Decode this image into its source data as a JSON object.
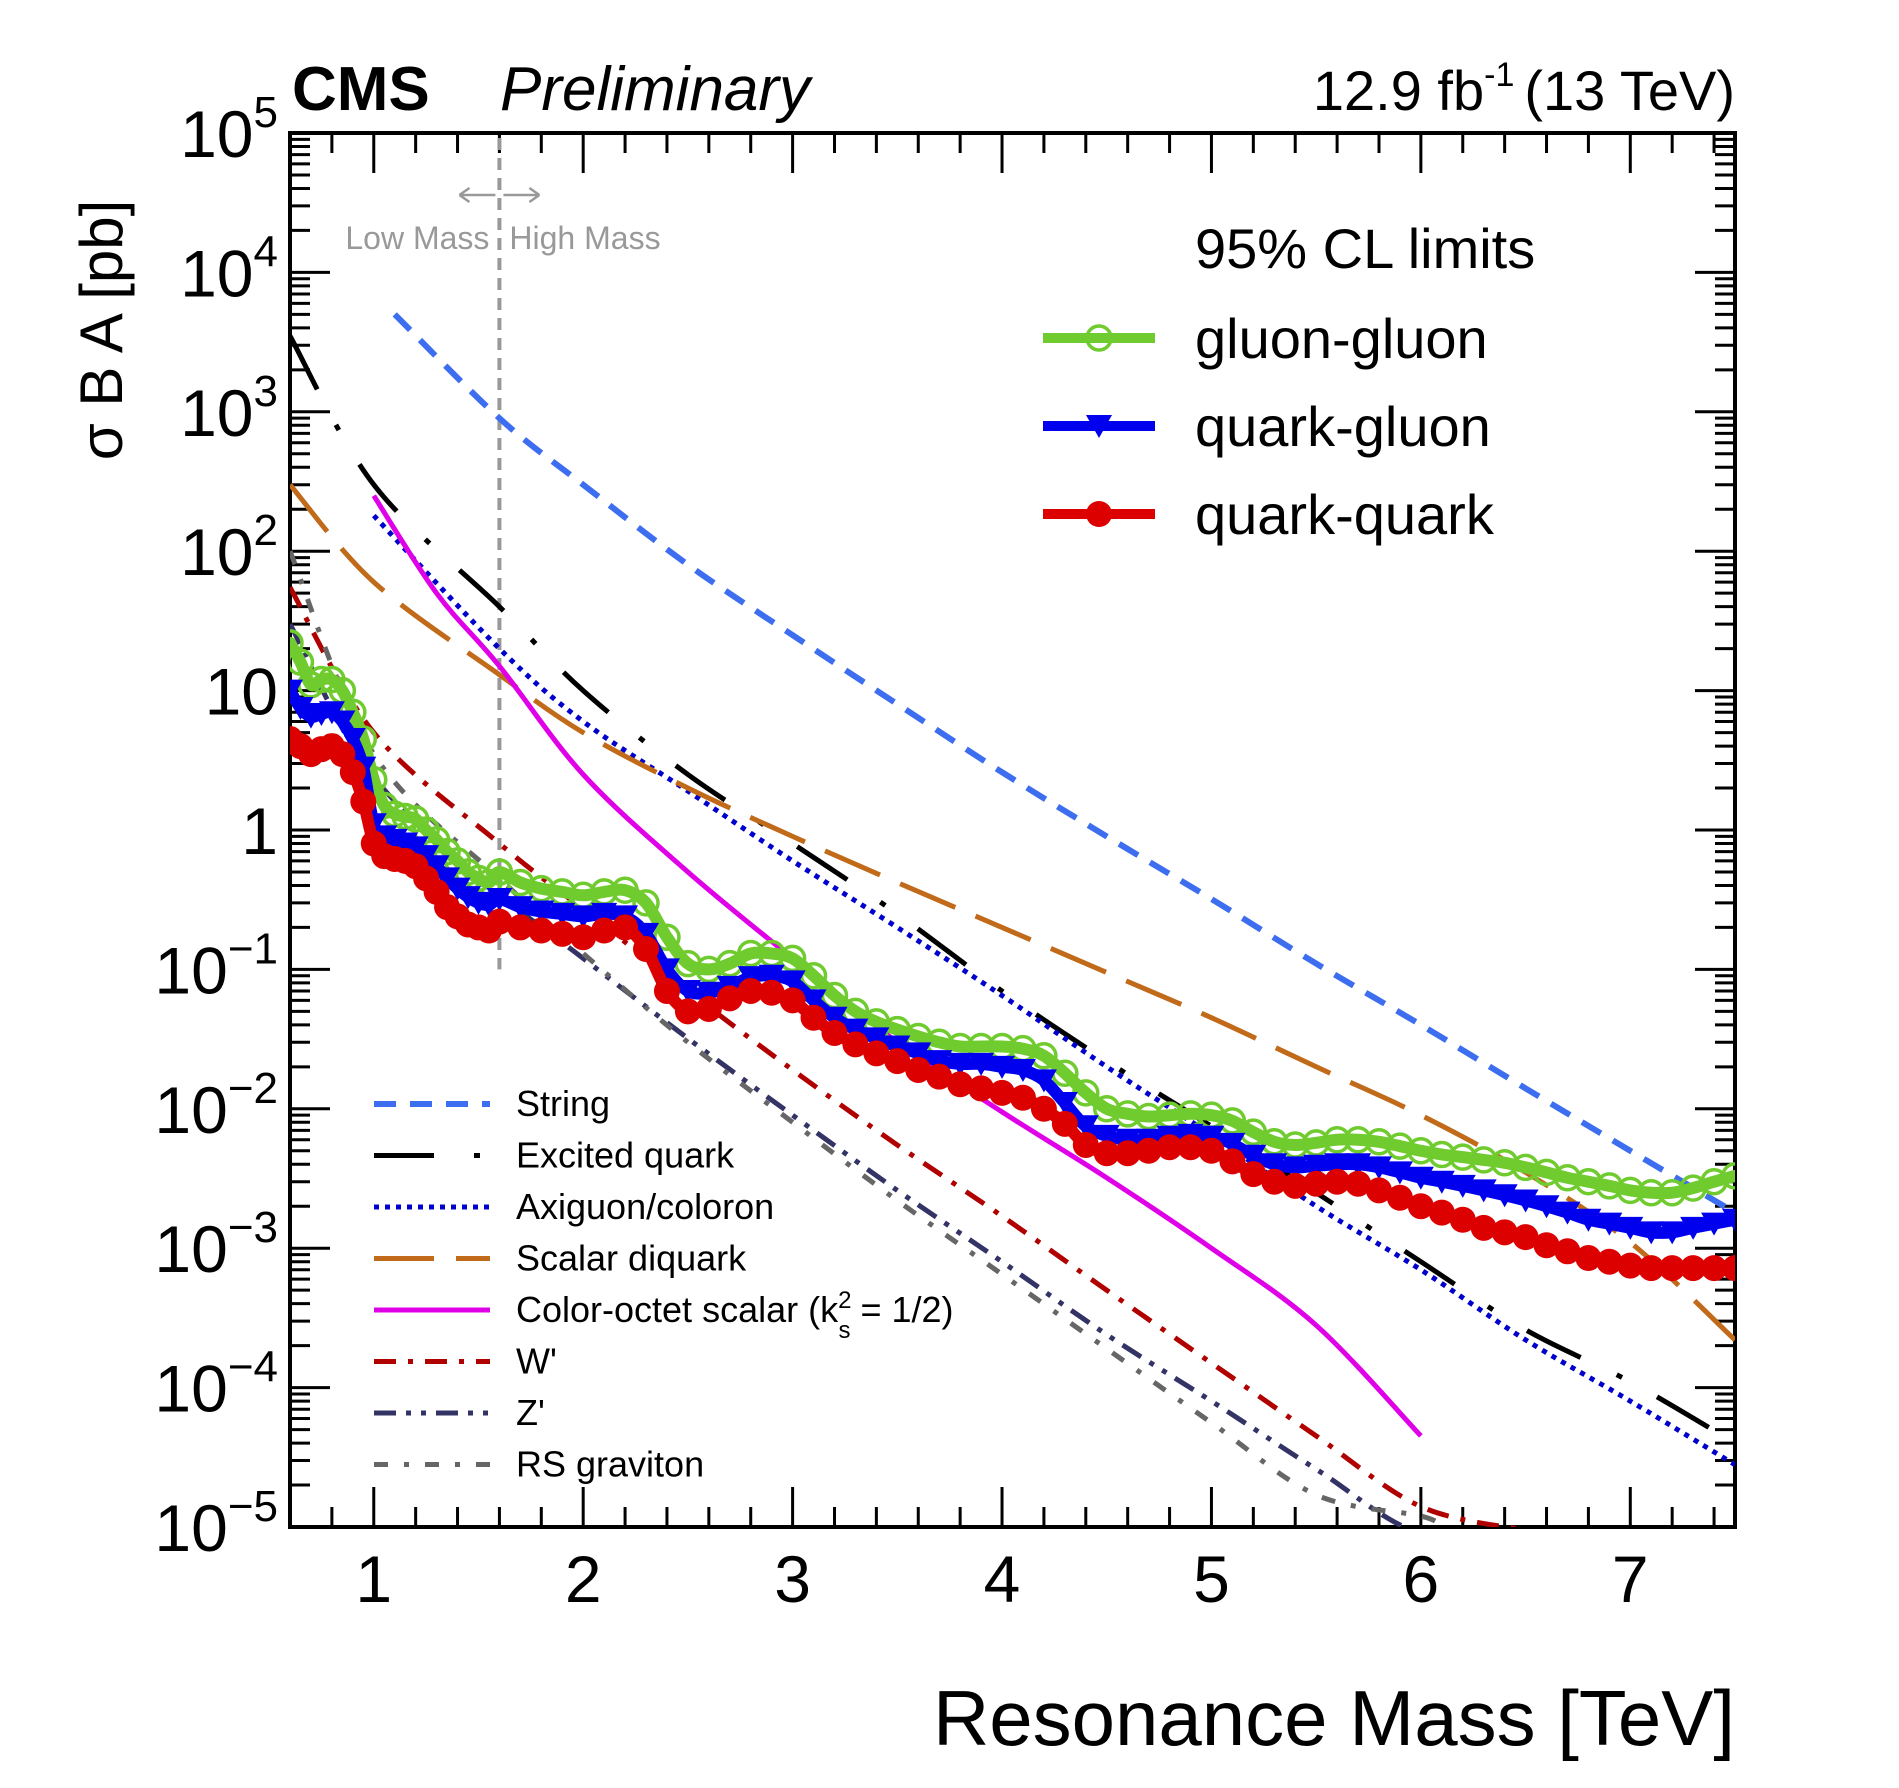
{
  "header": {
    "experiment": "CMS",
    "status": "Preliminary",
    "lumi": "12.9 fb",
    "lumi_exp": "-1",
    "energy": "(13 TeV)"
  },
  "annotations": {
    "low_mass": "Low Mass",
    "high_mass": "High Mass",
    "boundary_mass_tev": 1.6
  },
  "chart_data": {
    "type": "line",
    "title": "CMS Preliminary, 12.9 fb^-1 (13 TeV)",
    "xlabel": "Resonance Mass [TeV]",
    "ylabel": "σ B A [pb]",
    "xlim": [
      0.6,
      7.5
    ],
    "ylim": [
      1e-05,
      100000.0
    ],
    "yscale": "log",
    "grid": false,
    "xticks": [
      "1",
      "2",
      "3",
      "4",
      "5",
      "6",
      "7"
    ],
    "xtick_values": [
      1,
      2,
      3,
      4,
      5,
      6,
      7
    ],
    "yticks": [
      "10^5",
      "10^4",
      "10^3",
      "10^2",
      "10",
      "1",
      "10^-1",
      "10^-2",
      "10^-3",
      "10^-4",
      "10^-5"
    ],
    "ytick_exponents": [
      5,
      4,
      3,
      2,
      1,
      0,
      -1,
      -2,
      -3,
      -4,
      -5
    ],
    "limits_legend_title": "95% CL limits",
    "limits_legend_position": "top-right",
    "theory_legend_position": "bottom-left",
    "limit_series": [
      {
        "name": "gluon-gluon",
        "color": "#6fcb2e",
        "marker": "open-circle",
        "x": [
          0.6,
          0.65,
          0.7,
          0.75,
          0.8,
          0.85,
          0.9,
          0.95,
          1.0,
          1.05,
          1.1,
          1.15,
          1.2,
          1.25,
          1.3,
          1.35,
          1.4,
          1.45,
          1.5,
          1.55,
          1.6,
          1.7,
          1.8,
          1.9,
          2.0,
          2.1,
          2.2,
          2.3,
          2.4,
          2.5,
          2.6,
          2.7,
          2.8,
          2.9,
          3.0,
          3.1,
          3.2,
          3.3,
          3.4,
          3.5,
          3.6,
          3.7,
          3.8,
          3.9,
          4.0,
          4.1,
          4.2,
          4.3,
          4.4,
          4.5,
          4.6,
          4.7,
          4.8,
          4.9,
          5.0,
          5.1,
          5.2,
          5.3,
          5.4,
          5.5,
          5.6,
          5.7,
          5.8,
          5.9,
          6.0,
          6.1,
          6.2,
          6.3,
          6.4,
          6.5,
          6.6,
          6.7,
          6.8,
          6.9,
          7.0,
          7.1,
          7.2,
          7.3,
          7.4,
          7.5
        ],
        "y": [
          22,
          16,
          11,
          12,
          12,
          10,
          7,
          4.5,
          2.3,
          1.5,
          1.3,
          1.25,
          1.2,
          1.0,
          0.85,
          0.7,
          0.6,
          0.5,
          0.45,
          0.42,
          0.5,
          0.42,
          0.38,
          0.36,
          0.34,
          0.36,
          0.37,
          0.3,
          0.17,
          0.11,
          0.1,
          0.11,
          0.13,
          0.13,
          0.12,
          0.09,
          0.065,
          0.05,
          0.042,
          0.037,
          0.033,
          0.03,
          0.028,
          0.028,
          0.028,
          0.027,
          0.024,
          0.018,
          0.013,
          0.01,
          0.0092,
          0.0088,
          0.009,
          0.0092,
          0.009,
          0.0082,
          0.0068,
          0.0058,
          0.0055,
          0.0057,
          0.006,
          0.006,
          0.0058,
          0.0054,
          0.005,
          0.0047,
          0.0045,
          0.0043,
          0.0041,
          0.0038,
          0.0035,
          0.0032,
          0.003,
          0.0028,
          0.0026,
          0.0025,
          0.0025,
          0.0027,
          0.003,
          0.0033
        ]
      },
      {
        "name": "quark-gluon",
        "color": "#0000ee",
        "marker": "filled-down-triangle",
        "x": [
          0.6,
          0.65,
          0.7,
          0.75,
          0.8,
          0.85,
          0.9,
          0.95,
          1.0,
          1.05,
          1.1,
          1.15,
          1.2,
          1.25,
          1.3,
          1.35,
          1.4,
          1.45,
          1.5,
          1.55,
          1.6,
          1.7,
          1.8,
          1.9,
          2.0,
          2.1,
          2.2,
          2.3,
          2.4,
          2.5,
          2.6,
          2.7,
          2.8,
          2.9,
          3.0,
          3.1,
          3.2,
          3.3,
          3.4,
          3.5,
          3.6,
          3.7,
          3.8,
          3.9,
          4.0,
          4.1,
          4.2,
          4.3,
          4.4,
          4.5,
          4.6,
          4.7,
          4.8,
          4.9,
          5.0,
          5.1,
          5.2,
          5.3,
          5.4,
          5.5,
          5.6,
          5.7,
          5.8,
          5.9,
          6.0,
          6.1,
          6.2,
          6.3,
          6.4,
          6.5,
          6.6,
          6.7,
          6.8,
          6.9,
          7.0,
          7.1,
          7.2,
          7.3,
          7.4,
          7.5
        ],
        "y": [
          10,
          7.5,
          6.5,
          6.8,
          7,
          6,
          4.5,
          2.8,
          1.1,
          0.9,
          0.85,
          0.8,
          0.75,
          0.65,
          0.55,
          0.45,
          0.38,
          0.33,
          0.3,
          0.29,
          0.32,
          0.28,
          0.26,
          0.25,
          0.24,
          0.25,
          0.24,
          0.18,
          0.1,
          0.07,
          0.068,
          0.075,
          0.088,
          0.09,
          0.082,
          0.06,
          0.045,
          0.037,
          0.032,
          0.028,
          0.025,
          0.022,
          0.021,
          0.021,
          0.02,
          0.019,
          0.016,
          0.011,
          0.0075,
          0.0064,
          0.006,
          0.006,
          0.0063,
          0.0065,
          0.0063,
          0.0056,
          0.0046,
          0.004,
          0.0038,
          0.0039,
          0.004,
          0.004,
          0.0038,
          0.0035,
          0.0032,
          0.003,
          0.0028,
          0.0026,
          0.0024,
          0.0022,
          0.002,
          0.0018,
          0.0016,
          0.0015,
          0.0014,
          0.0013,
          0.0013,
          0.0014,
          0.0015,
          0.0016
        ]
      },
      {
        "name": "quark-quark",
        "color": "#dd0000",
        "marker": "filled-circle",
        "x": [
          0.6,
          0.65,
          0.7,
          0.75,
          0.8,
          0.85,
          0.9,
          0.95,
          1.0,
          1.05,
          1.1,
          1.15,
          1.2,
          1.25,
          1.3,
          1.35,
          1.4,
          1.45,
          1.5,
          1.55,
          1.6,
          1.7,
          1.8,
          1.9,
          2.0,
          2.1,
          2.2,
          2.3,
          2.4,
          2.5,
          2.6,
          2.7,
          2.8,
          2.9,
          3.0,
          3.1,
          3.2,
          3.3,
          3.4,
          3.5,
          3.6,
          3.7,
          3.8,
          3.9,
          4.0,
          4.1,
          4.2,
          4.3,
          4.4,
          4.5,
          4.6,
          4.7,
          4.8,
          4.9,
          5.0,
          5.1,
          5.2,
          5.3,
          5.4,
          5.5,
          5.6,
          5.7,
          5.8,
          5.9,
          6.0,
          6.1,
          6.2,
          6.3,
          6.4,
          6.5,
          6.6,
          6.7,
          6.8,
          6.9,
          7.0,
          7.1,
          7.2,
          7.3,
          7.4,
          7.5
        ],
        "y": [
          4.5,
          4,
          3.5,
          3.8,
          4,
          3.5,
          2.6,
          1.6,
          0.8,
          0.65,
          0.62,
          0.6,
          0.55,
          0.45,
          0.36,
          0.28,
          0.24,
          0.21,
          0.2,
          0.19,
          0.22,
          0.2,
          0.19,
          0.18,
          0.17,
          0.19,
          0.2,
          0.14,
          0.07,
          0.05,
          0.052,
          0.062,
          0.07,
          0.068,
          0.06,
          0.045,
          0.035,
          0.029,
          0.025,
          0.022,
          0.019,
          0.017,
          0.015,
          0.014,
          0.013,
          0.012,
          0.01,
          0.0078,
          0.0055,
          0.0048,
          0.0048,
          0.005,
          0.0053,
          0.0053,
          0.005,
          0.0042,
          0.0034,
          0.003,
          0.0028,
          0.0029,
          0.003,
          0.0029,
          0.0026,
          0.0023,
          0.002,
          0.0018,
          0.0016,
          0.0014,
          0.0013,
          0.0012,
          0.00105,
          0.00095,
          0.00085,
          0.0008,
          0.00075,
          0.00072,
          0.00072,
          0.00072,
          0.00072,
          0.00072
        ]
      }
    ],
    "theory_series": [
      {
        "name": "String",
        "color": "#3d6ef0",
        "style": "dashed",
        "x": [
          1.1,
          1.6,
          2.0,
          2.5,
          3.0,
          3.5,
          4.0,
          4.5,
          5.0,
          5.5,
          6.0,
          6.5,
          7.0,
          7.5
        ],
        "y": [
          5000,
          900,
          300,
          80,
          25,
          8,
          2.6,
          0.9,
          0.32,
          0.11,
          0.04,
          0.014,
          0.005,
          0.0018
        ]
      },
      {
        "name": "Excited quark",
        "color": "#000000",
        "style": "long-dash-dot",
        "x": [
          0.6,
          1.0,
          1.6,
          2.0,
          2.5,
          3.0,
          3.5,
          4.0,
          4.5,
          5.0,
          5.5,
          6.0,
          6.5,
          7.0,
          7.5
        ],
        "y": [
          3500,
          300,
          40,
          10,
          2.5,
          0.8,
          0.25,
          0.07,
          0.022,
          0.0075,
          0.0025,
          0.0008,
          0.00026,
          0.00011,
          4e-05
        ]
      },
      {
        "name": "Axiguon/coloron",
        "color": "#0000cc",
        "style": "dotted",
        "x": [
          1.0,
          1.6,
          2.0,
          2.5,
          3.0,
          3.5,
          4.0,
          4.5,
          5.0,
          5.5,
          6.0,
          6.5,
          7.0,
          7.5
        ],
        "y": [
          180,
          20,
          6,
          1.9,
          0.6,
          0.2,
          0.065,
          0.02,
          0.0065,
          0.002,
          0.0007,
          0.00022,
          8e-05,
          2.8e-05
        ]
      },
      {
        "name": "Scalar diquark",
        "color": "#c06a1a",
        "style": "long-dashed",
        "x": [
          0.6,
          1.0,
          1.6,
          2.0,
          2.5,
          3.0,
          3.5,
          4.0,
          4.5,
          5.0,
          5.5,
          6.0,
          6.5,
          7.0,
          7.5
        ],
        "y": [
          300,
          60,
          13,
          5,
          2,
          0.9,
          0.42,
          0.2,
          0.095,
          0.045,
          0.02,
          0.009,
          0.0035,
          0.0011,
          0.00022
        ]
      },
      {
        "name": "Color-octet scalar (k_s^2 = 1/2)",
        "color": "#e000e8",
        "style": "solid",
        "x": [
          1.0,
          1.3,
          1.6,
          2.0,
          2.5,
          3.0,
          3.5,
          4.0,
          4.5,
          5.0,
          5.5,
          6.0
        ],
        "y": [
          250,
          50,
          15,
          2.5,
          0.5,
          0.12,
          0.03,
          0.0095,
          0.0032,
          0.001,
          0.00028,
          4.5e-05
        ]
      },
      {
        "name": "W'",
        "color": "#b00000",
        "style": "dash-dot",
        "x": [
          0.6,
          1.0,
          1.6,
          2.0,
          2.5,
          3.0,
          3.5,
          4.0,
          4.5,
          5.0,
          5.5,
          6.0,
          6.5
        ],
        "y": [
          55,
          5,
          0.8,
          0.27,
          0.07,
          0.019,
          0.0055,
          0.0017,
          0.0005,
          0.00015,
          4.5e-05,
          1.4e-05,
          9.5e-06
        ]
      },
      {
        "name": "Z'",
        "color": "#333366",
        "style": "dash-dot-dot",
        "x": [
          0.6,
          1.0,
          1.6,
          2.0,
          2.5,
          3.0,
          3.5,
          4.0,
          4.5,
          5.0,
          5.5,
          6.0,
          6.5
        ],
        "y": [
          30,
          2.4,
          0.35,
          0.12,
          0.032,
          0.009,
          0.0026,
          0.0008,
          0.00024,
          8e-05,
          2.6e-05,
          9e-06,
          9.5e-06
        ]
      },
      {
        "name": "RS graviton",
        "color": "#666666",
        "style": "sparse-dash-dot",
        "x": [
          0.6,
          1.0,
          1.6,
          2.0,
          2.5,
          3.0,
          3.5,
          4.0,
          4.5,
          5.0,
          5.5,
          6.0,
          6.1
        ],
        "y": [
          100,
          3.5,
          0.45,
          0.13,
          0.03,
          0.008,
          0.0022,
          0.00065,
          0.00019,
          5.6e-05,
          1.7e-05,
          1.2e-05,
          1e-05
        ]
      }
    ]
  }
}
